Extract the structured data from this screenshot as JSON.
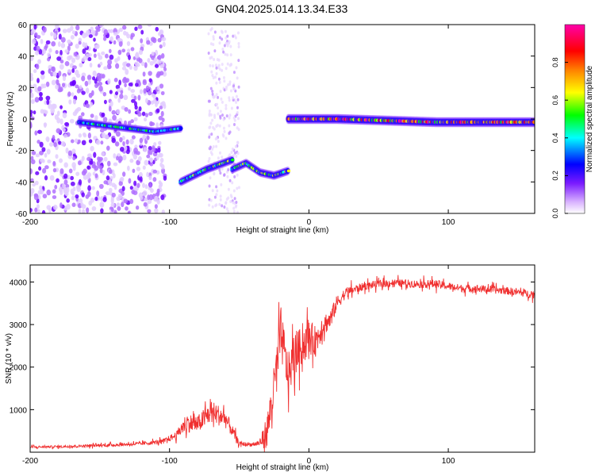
{
  "title": "GN04.2025.014.13.34.E33",
  "chart_data": [
    {
      "type": "heatmap",
      "xlabel": "Height of straight line (km)",
      "ylabel": "Frequency (Hz)",
      "xlim": [
        -200,
        162
      ],
      "ylim": [
        -60,
        60
      ],
      "x_ticks": [
        -200,
        -100,
        0,
        100
      ],
      "y_ticks": [
        -60,
        -40,
        -20,
        0,
        20,
        40,
        60
      ],
      "colorbar": {
        "label": "Normalized spectral amplitude",
        "range": [
          0.0,
          1.0
        ],
        "ticks": [
          "0.0",
          "0.2",
          "0.4",
          "0.6",
          "0.8"
        ],
        "colormap": "rainbow",
        "colors": [
          "#d9b3ff",
          "#6a00ff",
          "#0000ff",
          "#00ffff",
          "#00ff00",
          "#ffff00",
          "#ff8000",
          "#ff0000",
          "#ff00aa"
        ]
      },
      "features": [
        {
          "segment": "low-altitude noise",
          "x_range": [
            -200,
            -103
          ],
          "freq_range": [
            -60,
            60
          ],
          "amplitude": "0.0-0.2"
        },
        {
          "segment": "band 1",
          "x_range": [
            -165,
            -92
          ],
          "freq": [
            -2,
            -4,
            -6,
            -8,
            -6
          ],
          "amplitude": "0.2-0.5"
        },
        {
          "segment": "band 2",
          "x_range": [
            -92,
            -55
          ],
          "freq": [
            -40,
            -32,
            -26
          ],
          "amplitude": "0.3-0.6"
        },
        {
          "segment": "band 3",
          "x_range": [
            -55,
            -15
          ],
          "freq": [
            -32,
            -28,
            -34,
            -36,
            -33
          ],
          "amplitude": "0.3-0.6"
        },
        {
          "segment": "band 4",
          "x_range": [
            -15,
            162
          ],
          "freq": [
            0,
            0,
            -1,
            -2,
            -2,
            -2
          ],
          "amplitude": "0.5-1.0"
        }
      ]
    },
    {
      "type": "line",
      "xlabel": "Height of straight line (km)",
      "ylabel": "SNR (10 * v/v)",
      "xlim": [
        -200,
        162
      ],
      "ylim": [
        0,
        4400
      ],
      "x_ticks": [
        -200,
        -100,
        0,
        100
      ],
      "y_ticks": [
        1000,
        2000,
        3000,
        4000
      ],
      "series": [
        {
          "color": "#f03030",
          "x": [
            -200,
            -180,
            -160,
            -140,
            -120,
            -105,
            -95,
            -88,
            -80,
            -70,
            -60,
            -50,
            -40,
            -35,
            -30,
            -25,
            -20,
            -15,
            -10,
            -5,
            0,
            5,
            10,
            15,
            20,
            25,
            30,
            40,
            50,
            60,
            70,
            80,
            90,
            100,
            110,
            120,
            130,
            140,
            150,
            162
          ],
          "y": [
            120,
            130,
            150,
            170,
            200,
            250,
            400,
            700,
            650,
            950,
            800,
            200,
            180,
            220,
            500,
            1500,
            2800,
            1800,
            2300,
            2500,
            2700,
            2600,
            3000,
            3100,
            3500,
            3700,
            3800,
            3900,
            3950,
            3980,
            3970,
            3950,
            3960,
            3900,
            3850,
            3850,
            3820,
            3800,
            3760,
            3700
          ],
          "noise": [
            60,
            60,
            70,
            80,
            90,
            120,
            200,
            500,
            450,
            600,
            500,
            120,
            100,
            200,
            900,
            1200,
            1400,
            1100,
            1100,
            1000,
            900,
            800,
            600,
            500,
            400,
            300,
            250,
            200,
            200,
            200,
            200,
            200,
            220,
            200,
            200,
            200,
            200,
            200,
            200,
            200
          ]
        }
      ]
    }
  ]
}
